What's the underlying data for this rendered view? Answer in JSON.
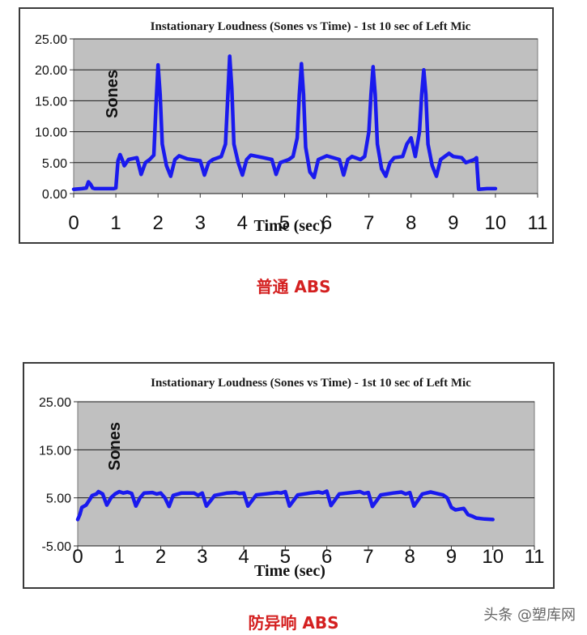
{
  "charts": [
    {
      "caption": "普通 ABS",
      "chart_data": {
        "type": "line",
        "title": "Instationary Loudness (Sones vs Time) - 1st 10 sec of Left Mic",
        "xlabel": "Time (sec)",
        "ylabel": "Sones",
        "xlim": [
          0,
          11
        ],
        "ylim": [
          0,
          25
        ],
        "x_ticks": [
          "0",
          "1",
          "2",
          "3",
          "4",
          "5",
          "6",
          "7",
          "8",
          "9",
          "10",
          "11"
        ],
        "y_ticks": [
          "0.00",
          "5.00",
          "10.00",
          "15.00",
          "20.00",
          "25.00"
        ],
        "y_tick_values": [
          0,
          5,
          10,
          15,
          20,
          25
        ],
        "plot_background": "#c0c0c0",
        "line_color": "#1a1aee",
        "grid": true,
        "series": [
          {
            "x": [
              0.0,
              0.2,
              0.3,
              0.35,
              0.4,
              0.45,
              0.5,
              0.7,
              0.9,
              0.95,
              1.0,
              1.05,
              1.1,
              1.15,
              1.2,
              1.3,
              1.5,
              1.6,
              1.7,
              1.8,
              1.9,
              1.95,
              2.0,
              2.05,
              2.1,
              2.2,
              2.3,
              2.4,
              2.5,
              2.7,
              3.0,
              3.1,
              3.2,
              3.3,
              3.5,
              3.6,
              3.65,
              3.7,
              3.75,
              3.8,
              3.9,
              4.0,
              4.1,
              4.2,
              4.5,
              4.7,
              4.8,
              4.9,
              5.1,
              5.2,
              5.3,
              5.35,
              5.4,
              5.45,
              5.5,
              5.6,
              5.7,
              5.8,
              6.0,
              6.3,
              6.4,
              6.5,
              6.6,
              6.8,
              6.9,
              7.0,
              7.05,
              7.1,
              7.15,
              7.2,
              7.3,
              7.4,
              7.5,
              7.6,
              7.8,
              7.9,
              8.0,
              8.1,
              8.2,
              8.25,
              8.3,
              8.35,
              8.4,
              8.5,
              8.6,
              8.7,
              8.8,
              8.9,
              9.0,
              9.2,
              9.3,
              9.5,
              9.55,
              9.6,
              9.8,
              10.0
            ],
            "y": [
              0.7,
              0.8,
              0.9,
              1.9,
              1.5,
              0.9,
              0.8,
              0.8,
              0.8,
              0.8,
              0.9,
              5.3,
              6.3,
              5.5,
              4.5,
              5.5,
              5.8,
              3.1,
              5.0,
              5.5,
              6.2,
              14.0,
              20.8,
              16.0,
              8.0,
              4.5,
              2.8,
              5.5,
              6.1,
              5.6,
              5.3,
              3.0,
              5.0,
              5.5,
              6.0,
              8.0,
              15.0,
              22.2,
              17.0,
              8.0,
              5.0,
              3.0,
              5.5,
              6.2,
              5.8,
              5.5,
              3.1,
              5.0,
              5.5,
              6.0,
              9.0,
              16.0,
              21.0,
              16.0,
              7.5,
              3.5,
              2.6,
              5.5,
              6.1,
              5.5,
              3.0,
              5.5,
              6.0,
              5.5,
              6.0,
              10.0,
              16.0,
              20.5,
              16.0,
              8.0,
              4.0,
              2.8,
              5.0,
              5.8,
              6.0,
              8.0,
              9.0,
              6.0,
              10.0,
              16.0,
              20.0,
              16.0,
              8.0,
              4.5,
              2.8,
              5.5,
              6.0,
              6.5,
              6.0,
              5.8,
              5.0,
              5.5,
              5.8,
              0.7,
              0.8,
              0.8
            ]
          }
        ]
      }
    },
    {
      "caption": "防异响 ABS",
      "chart_data": {
        "type": "line",
        "title": "Instationary Loudness (Sones vs Time) - 1st 10 sec of Left Mic",
        "xlabel": "Time (sec)",
        "ylabel": "Sones",
        "xlim": [
          0,
          11
        ],
        "ylim": [
          -5,
          25
        ],
        "x_ticks": [
          "0",
          "1",
          "2",
          "3",
          "4",
          "5",
          "6",
          "7",
          "8",
          "9",
          "10",
          "11"
        ],
        "y_ticks": [
          "-5.00",
          "5.00",
          "15.00",
          "25.00"
        ],
        "y_tick_values": [
          -5,
          5,
          15,
          25
        ],
        "plot_background": "#c0c0c0",
        "line_color": "#1a1aee",
        "grid": true,
        "series": [
          {
            "x": [
              0.0,
              0.05,
              0.1,
              0.2,
              0.3,
              0.35,
              0.45,
              0.5,
              0.6,
              0.7,
              0.8,
              0.9,
              1.0,
              1.1,
              1.2,
              1.3,
              1.4,
              1.5,
              1.6,
              1.8,
              1.9,
              2.0,
              2.1,
              2.2,
              2.3,
              2.5,
              2.8,
              2.9,
              3.0,
              3.1,
              3.3,
              3.6,
              3.8,
              3.9,
              4.0,
              4.1,
              4.3,
              4.6,
              4.8,
              4.9,
              5.0,
              5.1,
              5.3,
              5.6,
              5.8,
              5.9,
              6.0,
              6.1,
              6.3,
              6.6,
              6.8,
              6.9,
              7.0,
              7.1,
              7.3,
              7.6,
              7.8,
              7.9,
              8.0,
              8.1,
              8.3,
              8.5,
              8.6,
              8.7,
              8.8,
              8.9,
              9.0,
              9.1,
              9.3,
              9.4,
              9.5,
              9.6,
              9.8,
              10.0
            ],
            "y": [
              0.5,
              1.5,
              3.0,
              3.5,
              4.8,
              5.5,
              5.8,
              6.3,
              5.8,
              3.5,
              5.0,
              5.8,
              6.3,
              6.0,
              6.2,
              5.9,
              3.3,
              5.0,
              6.0,
              6.1,
              5.8,
              6.0,
              5.0,
              3.2,
              5.5,
              6.0,
              6.0,
              5.5,
              6.0,
              3.3,
              5.5,
              6.0,
              6.1,
              5.9,
              6.0,
              3.3,
              5.6,
              5.9,
              6.1,
              6.0,
              6.3,
              3.3,
              5.6,
              6.0,
              6.2,
              6.0,
              6.4,
              3.4,
              5.8,
              6.1,
              6.3,
              5.9,
              6.1,
              3.2,
              5.6,
              6.0,
              6.2,
              5.8,
              6.1,
              3.3,
              5.8,
              6.2,
              6.0,
              5.8,
              5.6,
              5.0,
              3.0,
              2.5,
              2.8,
              1.5,
              1.2,
              0.8,
              0.6,
              0.5
            ]
          }
        ]
      }
    }
  ],
  "watermark": {
    "text": "头条 @塑库网"
  }
}
